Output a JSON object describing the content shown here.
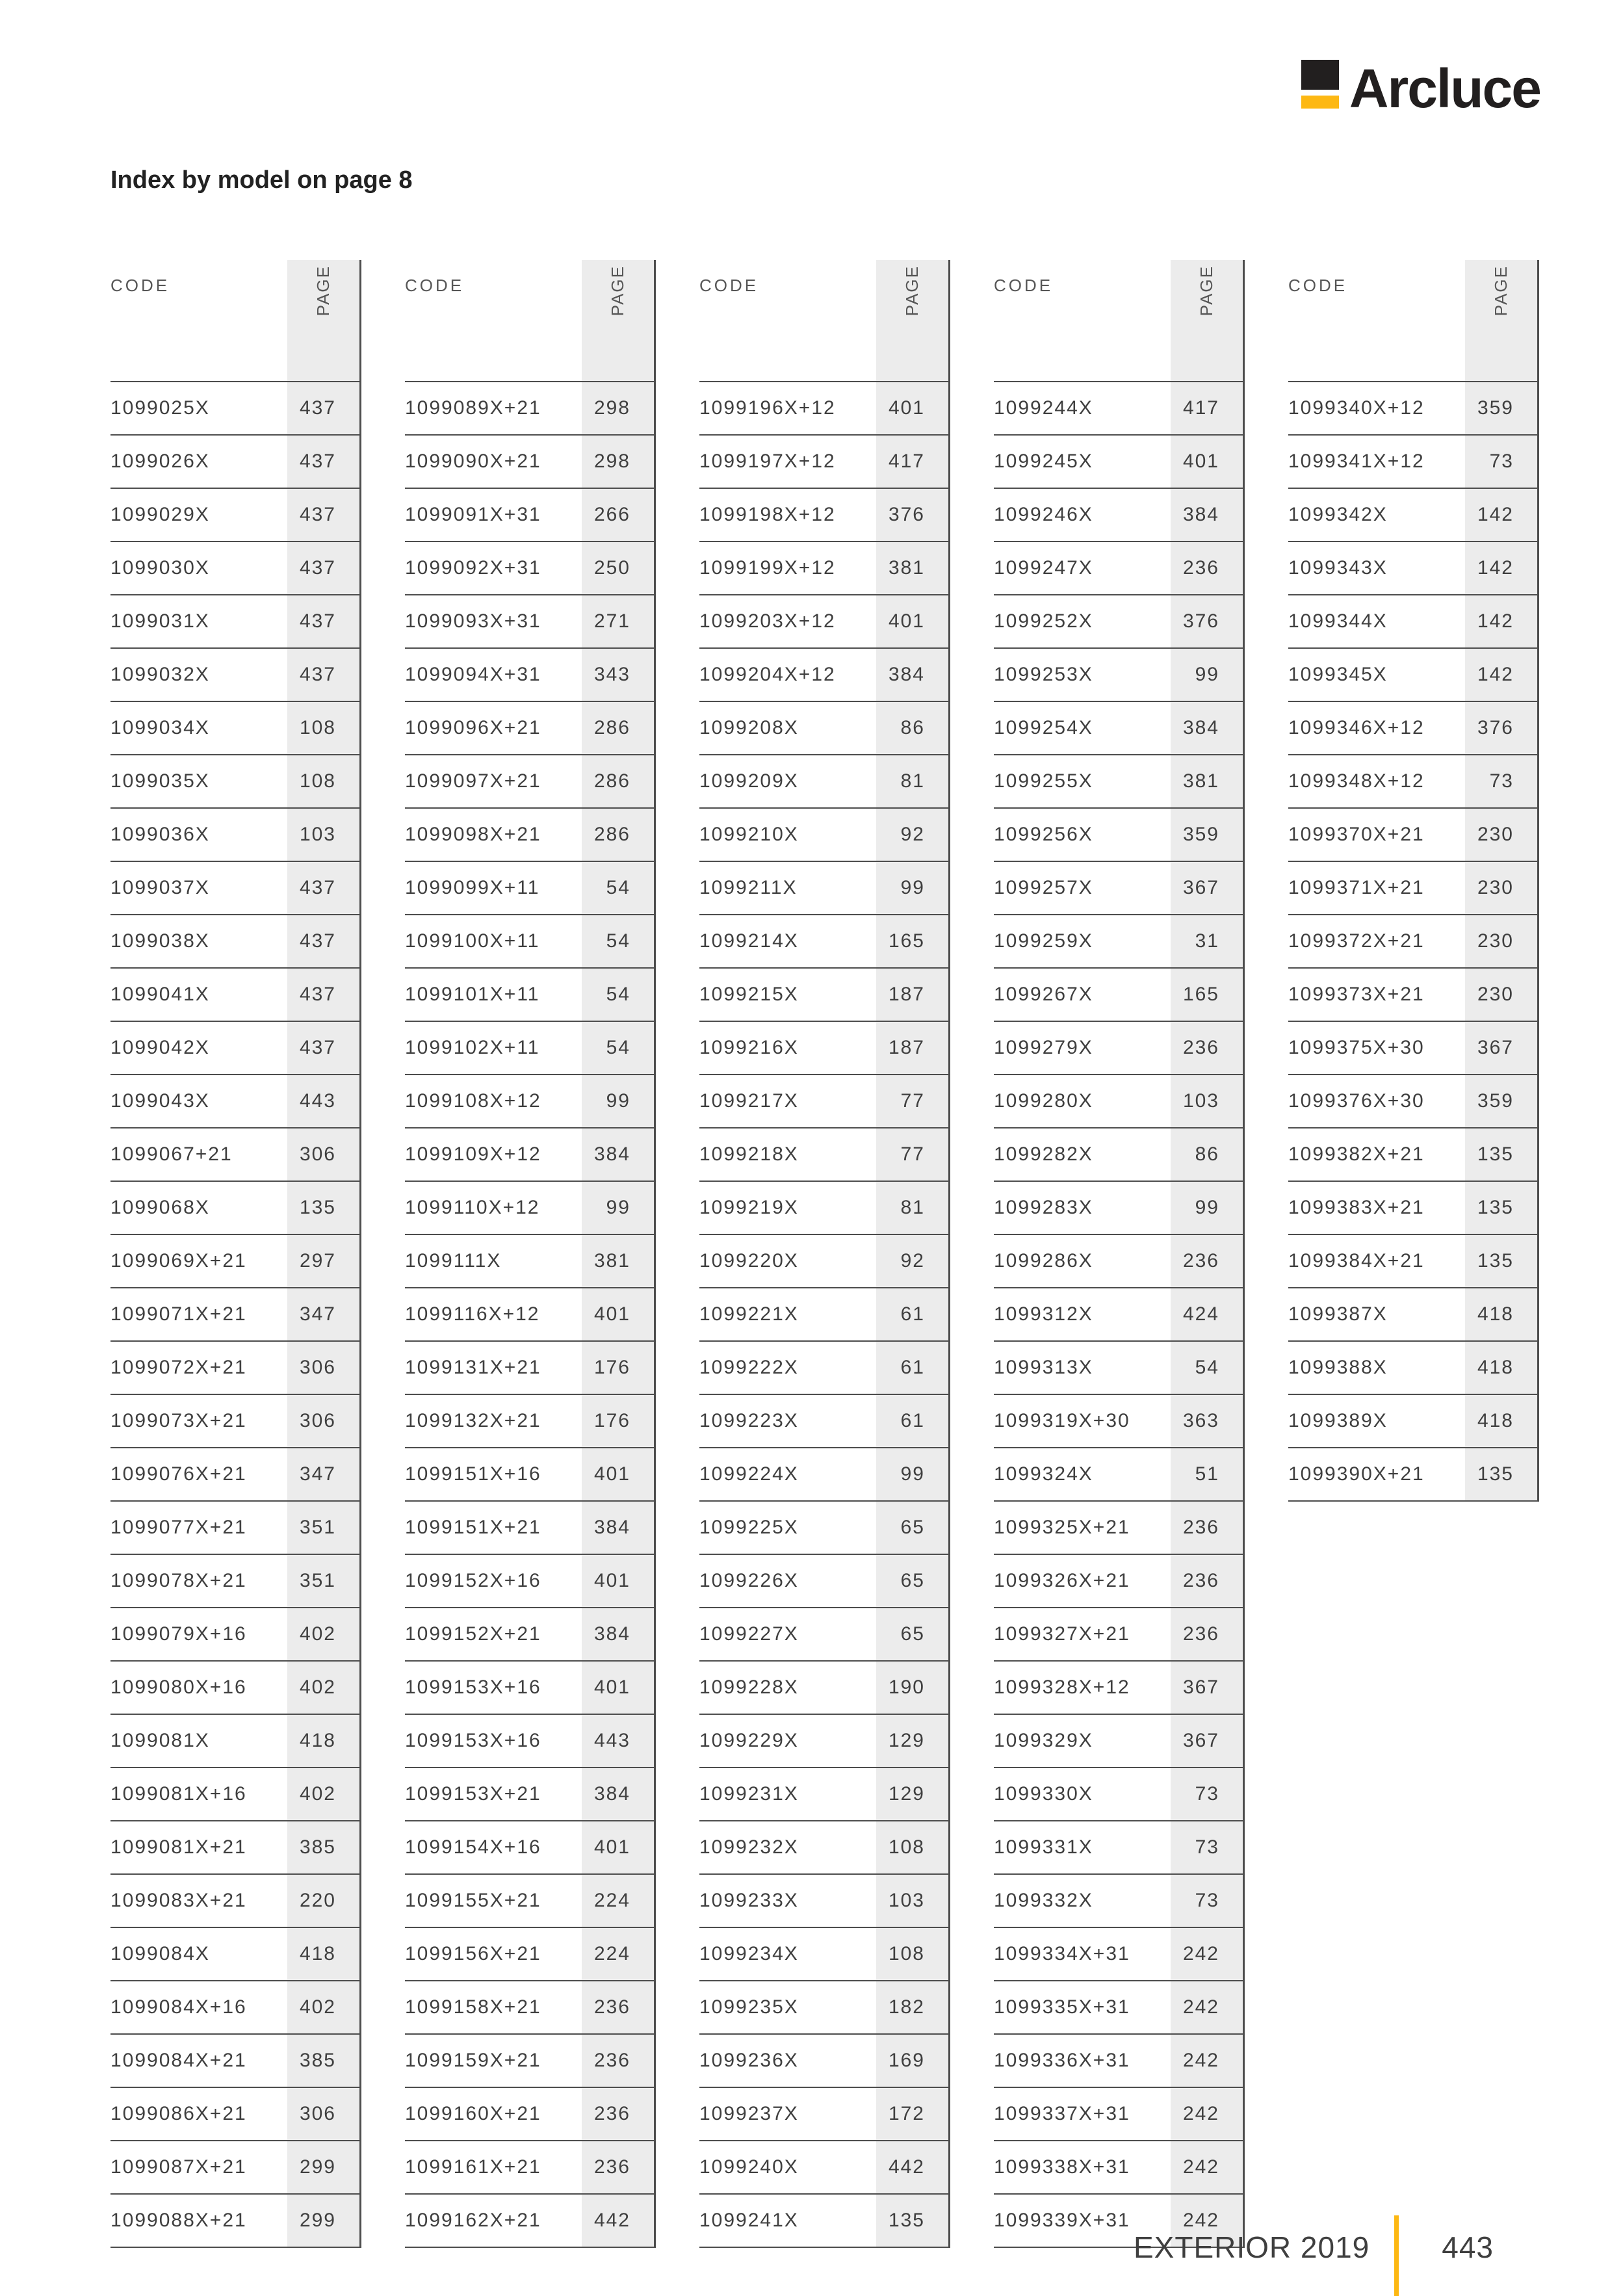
{
  "brand": {
    "name": "Arcluce"
  },
  "title": "Index by model on page 8",
  "table": {
    "code_header": "CODE",
    "page_header": "PAGE"
  },
  "colors": {
    "accent_yellow": "#FDB813",
    "ink": "#221F1F",
    "row_line": "#4D4D4D",
    "page_col_bg": "#ECECEC"
  },
  "columns": [
    {
      "rows": [
        [
          "1099025X",
          "437"
        ],
        [
          "1099026X",
          "437"
        ],
        [
          "1099029X",
          "437"
        ],
        [
          "1099030X",
          "437"
        ],
        [
          "1099031X",
          "437"
        ],
        [
          "1099032X",
          "437"
        ],
        [
          "1099034X",
          "108"
        ],
        [
          "1099035X",
          "108"
        ],
        [
          "1099036X",
          "103"
        ],
        [
          "1099037X",
          "437"
        ],
        [
          "1099038X",
          "437"
        ],
        [
          "1099041X",
          "437"
        ],
        [
          "1099042X",
          "437"
        ],
        [
          "1099043X",
          "443"
        ],
        [
          "1099067+21",
          "306"
        ],
        [
          "1099068X",
          "135"
        ],
        [
          "1099069X+21",
          "297"
        ],
        [
          "1099071X+21",
          "347"
        ],
        [
          "1099072X+21",
          "306"
        ],
        [
          "1099073X+21",
          "306"
        ],
        [
          "1099076X+21",
          "347"
        ],
        [
          "1099077X+21",
          "351"
        ],
        [
          "1099078X+21",
          "351"
        ],
        [
          "1099079X+16",
          "402"
        ],
        [
          "1099080X+16",
          "402"
        ],
        [
          "1099081X",
          "418"
        ],
        [
          "1099081X+16",
          "402"
        ],
        [
          "1099081X+21",
          "385"
        ],
        [
          "1099083X+21",
          "220"
        ],
        [
          "1099084X",
          "418"
        ],
        [
          "1099084X+16",
          "402"
        ],
        [
          "1099084X+21",
          "385"
        ],
        [
          "1099086X+21",
          "306"
        ],
        [
          "1099087X+21",
          "299"
        ],
        [
          "1099088X+21",
          "299"
        ]
      ]
    },
    {
      "rows": [
        [
          "1099089X+21",
          "298"
        ],
        [
          "1099090X+21",
          "298"
        ],
        [
          "1099091X+31",
          "266"
        ],
        [
          "1099092X+31",
          "250"
        ],
        [
          "1099093X+31",
          "271"
        ],
        [
          "1099094X+31",
          "343"
        ],
        [
          "1099096X+21",
          "286"
        ],
        [
          "1099097X+21",
          "286"
        ],
        [
          "1099098X+21",
          "286"
        ],
        [
          "1099099X+11",
          "54"
        ],
        [
          "1099100X+11",
          "54"
        ],
        [
          "1099101X+11",
          "54"
        ],
        [
          "1099102X+11",
          "54"
        ],
        [
          "1099108X+12",
          "99"
        ],
        [
          "1099109X+12",
          "384"
        ],
        [
          "1099110X+12",
          "99"
        ],
        [
          "1099111X",
          "381"
        ],
        [
          "1099116X+12",
          "401"
        ],
        [
          "1099131X+21",
          "176"
        ],
        [
          "1099132X+21",
          "176"
        ],
        [
          "1099151X+16",
          "401"
        ],
        [
          "1099151X+21",
          "384"
        ],
        [
          "1099152X+16",
          "401"
        ],
        [
          "1099152X+21",
          "384"
        ],
        [
          "1099153X+16",
          "401"
        ],
        [
          "1099153X+16",
          "443"
        ],
        [
          "1099153X+21",
          "384"
        ],
        [
          "1099154X+16",
          "401"
        ],
        [
          "1099155X+21",
          "224"
        ],
        [
          "1099156X+21",
          "224"
        ],
        [
          "1099158X+21",
          "236"
        ],
        [
          "1099159X+21",
          "236"
        ],
        [
          "1099160X+21",
          "236"
        ],
        [
          "1099161X+21",
          "236"
        ],
        [
          "1099162X+21",
          "442"
        ]
      ]
    },
    {
      "rows": [
        [
          "1099196X+12",
          "401"
        ],
        [
          "1099197X+12",
          "417"
        ],
        [
          "1099198X+12",
          "376"
        ],
        [
          "1099199X+12",
          "381"
        ],
        [
          "1099203X+12",
          "401"
        ],
        [
          "1099204X+12",
          "384"
        ],
        [
          "1099208X",
          "86"
        ],
        [
          "1099209X",
          "81"
        ],
        [
          "1099210X",
          "92"
        ],
        [
          "1099211X",
          "99"
        ],
        [
          "1099214X",
          "165"
        ],
        [
          "1099215X",
          "187"
        ],
        [
          "1099216X",
          "187"
        ],
        [
          "1099217X",
          "77"
        ],
        [
          "1099218X",
          "77"
        ],
        [
          "1099219X",
          "81"
        ],
        [
          "1099220X",
          "92"
        ],
        [
          "1099221X",
          "61"
        ],
        [
          "1099222X",
          "61"
        ],
        [
          "1099223X",
          "61"
        ],
        [
          "1099224X",
          "99"
        ],
        [
          "1099225X",
          "65"
        ],
        [
          "1099226X",
          "65"
        ],
        [
          "1099227X",
          "65"
        ],
        [
          "1099228X",
          "190"
        ],
        [
          "1099229X",
          "129"
        ],
        [
          "1099231X",
          "129"
        ],
        [
          "1099232X",
          "108"
        ],
        [
          "1099233X",
          "103"
        ],
        [
          "1099234X",
          "108"
        ],
        [
          "1099235X",
          "182"
        ],
        [
          "1099236X",
          "169"
        ],
        [
          "1099237X",
          "172"
        ],
        [
          "1099240X",
          "442"
        ],
        [
          "1099241X",
          "135"
        ]
      ]
    },
    {
      "rows": [
        [
          "1099244X",
          "417"
        ],
        [
          "1099245X",
          "401"
        ],
        [
          "1099246X",
          "384"
        ],
        [
          "1099247X",
          "236"
        ],
        [
          "1099252X",
          "376"
        ],
        [
          "1099253X",
          "99"
        ],
        [
          "1099254X",
          "384"
        ],
        [
          "1099255X",
          "381"
        ],
        [
          "1099256X",
          "359"
        ],
        [
          "1099257X",
          "367"
        ],
        [
          "1099259X",
          "31"
        ],
        [
          "1099267X",
          "165"
        ],
        [
          "1099279X",
          "236"
        ],
        [
          "1099280X",
          "103"
        ],
        [
          "1099282X",
          "86"
        ],
        [
          "1099283X",
          "99"
        ],
        [
          "1099286X",
          "236"
        ],
        [
          "1099312X",
          "424"
        ],
        [
          "1099313X",
          "54"
        ],
        [
          "1099319X+30",
          "363"
        ],
        [
          "1099324X",
          "51"
        ],
        [
          "1099325X+21",
          "236"
        ],
        [
          "1099326X+21",
          "236"
        ],
        [
          "1099327X+21",
          "236"
        ],
        [
          "1099328X+12",
          "367"
        ],
        [
          "1099329X",
          "367"
        ],
        [
          "1099330X",
          "73"
        ],
        [
          "1099331X",
          "73"
        ],
        [
          "1099332X",
          "73"
        ],
        [
          "1099334X+31",
          "242"
        ],
        [
          "1099335X+31",
          "242"
        ],
        [
          "1099336X+31",
          "242"
        ],
        [
          "1099337X+31",
          "242"
        ],
        [
          "1099338X+31",
          "242"
        ],
        [
          "1099339X+31",
          "242"
        ]
      ]
    },
    {
      "rows": [
        [
          "1099340X+12",
          "359"
        ],
        [
          "1099341X+12",
          "73"
        ],
        [
          "1099342X",
          "142"
        ],
        [
          "1099343X",
          "142"
        ],
        [
          "1099344X",
          "142"
        ],
        [
          "1099345X",
          "142"
        ],
        [
          "1099346X+12",
          "376"
        ],
        [
          "1099348X+12",
          "73"
        ],
        [
          "1099370X+21",
          "230"
        ],
        [
          "1099371X+21",
          "230"
        ],
        [
          "1099372X+21",
          "230"
        ],
        [
          "1099373X+21",
          "230"
        ],
        [
          "1099375X+30",
          "367"
        ],
        [
          "1099376X+30",
          "359"
        ],
        [
          "1099382X+21",
          "135"
        ],
        [
          "1099383X+21",
          "135"
        ],
        [
          "1099384X+21",
          "135"
        ],
        [
          "1099387X",
          "418"
        ],
        [
          "1099388X",
          "418"
        ],
        [
          "1099389X",
          "418"
        ],
        [
          "1099390X+21",
          "135"
        ]
      ]
    }
  ],
  "footer": {
    "catalog": "EXTERIOR 2019",
    "page_number": "443"
  }
}
